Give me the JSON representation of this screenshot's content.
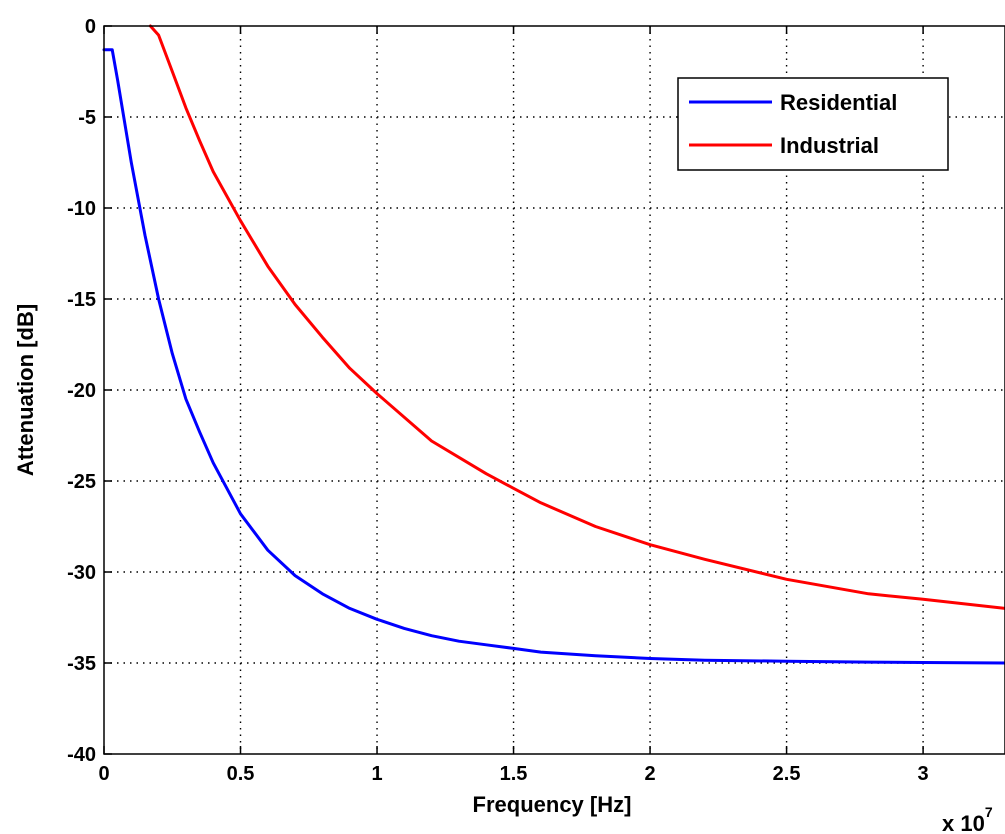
{
  "chart_data": {
    "type": "line",
    "title": "",
    "xlabel": "Frequency [Hz]",
    "ylabel": "Attenuation [dB]",
    "x_multiplier_label": "x 10",
    "x_multiplier_exp": "7",
    "xlim": [
      0,
      3.3
    ],
    "ylim": [
      -40,
      0
    ],
    "xticks": [
      0,
      0.5,
      1,
      1.5,
      2,
      2.5,
      3
    ],
    "xtick_labels": [
      "0",
      "0.5",
      "1",
      "1.5",
      "2",
      "2.5",
      "3"
    ],
    "yticks": [
      0,
      -5,
      -10,
      -15,
      -20,
      -25,
      -30,
      -35,
      -40
    ],
    "ytick_labels": [
      "0",
      "-5",
      "-10",
      "-15",
      "-20",
      "-25",
      "-30",
      "-35",
      "-40"
    ],
    "grid": true,
    "legend_position": "top-right",
    "series": [
      {
        "name": "Residential",
        "color": "#0000ff",
        "x": [
          0,
          0.03,
          0.05,
          0.1,
          0.15,
          0.2,
          0.25,
          0.3,
          0.35,
          0.4,
          0.5,
          0.6,
          0.7,
          0.8,
          0.9,
          1.0,
          1.1,
          1.2,
          1.3,
          1.4,
          1.5,
          1.6,
          1.8,
          2.0,
          2.2,
          2.5,
          2.8,
          3.0,
          3.3
        ],
        "y": [
          -1.3,
          -1.3,
          -3,
          -7.5,
          -11.5,
          -15,
          -18,
          -20.5,
          -22.3,
          -24,
          -26.8,
          -28.8,
          -30.2,
          -31.2,
          -32,
          -32.6,
          -33.1,
          -33.5,
          -33.8,
          -34.0,
          -34.2,
          -34.4,
          -34.6,
          -34.75,
          -34.85,
          -34.9,
          -34.95,
          -34.97,
          -35
        ]
      },
      {
        "name": "Industrial",
        "color": "#ff0000",
        "x": [
          0.17,
          0.2,
          0.25,
          0.3,
          0.35,
          0.4,
          0.5,
          0.6,
          0.7,
          0.8,
          0.9,
          1.0,
          1.2,
          1.4,
          1.5,
          1.6,
          1.8,
          2.0,
          2.2,
          2.5,
          2.8,
          3.0,
          3.3
        ],
        "y": [
          0,
          -0.5,
          -2.5,
          -4.5,
          -6.3,
          -8,
          -10.7,
          -13.2,
          -15.3,
          -17.1,
          -18.8,
          -20.2,
          -22.8,
          -24.6,
          -25.4,
          -26.2,
          -27.5,
          -28.5,
          -29.3,
          -30.4,
          -31.2,
          -31.5,
          -32
        ]
      }
    ]
  }
}
